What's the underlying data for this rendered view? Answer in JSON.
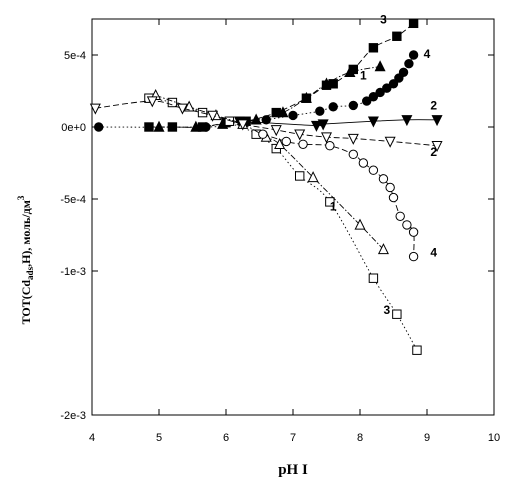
{
  "chart_data": {
    "type": "scatter",
    "xlabel": "pH I",
    "ylabel": "TOT(Cd_ads,H), моль/дм^3",
    "ylabel_parts": {
      "main": "TOT(Cd",
      "sub": "ads",
      "mid": ",H), моль/дм",
      "sup": "3"
    },
    "xlim": [
      4,
      10
    ],
    "ylim": [
      -0.002,
      0.00075
    ],
    "x_ticks": [
      4,
      5,
      6,
      7,
      8,
      9,
      10
    ],
    "x_tick_labels": [
      "4",
      "5",
      "6",
      "7",
      "8",
      "9",
      "10"
    ],
    "y_ticks": [
      0.0005,
      0,
      -0.0005,
      -0.001,
      -0.002
    ],
    "y_tick_labels": [
      "5e-4",
      "0e+0",
      "-5e-4",
      "-1e-3",
      "-2e-3"
    ],
    "grid": false,
    "series": [
      {
        "marker": "square-filled",
        "line": "dashed",
        "label_text": "3",
        "points": [
          [
            4.85,
            0
          ],
          [
            5.2,
            0
          ],
          [
            5.65,
            0
          ],
          [
            6.0,
            3e-05
          ],
          [
            6.3,
            4e-05
          ],
          [
            6.75,
            0.0001
          ],
          [
            7.2,
            0.0002
          ],
          [
            7.5,
            0.00029
          ],
          [
            7.6,
            0.0003
          ],
          [
            7.9,
            0.0004
          ],
          [
            8.2,
            0.00055
          ],
          [
            8.55,
            0.00063
          ],
          [
            8.8,
            0.00072
          ]
        ],
        "label_at": [
          8.3,
          0.00072
        ]
      },
      {
        "marker": "triangle-up-filled",
        "line": "dash-dot",
        "label_text": "1",
        "points": [
          [
            5.0,
            0
          ],
          [
            5.55,
            0
          ],
          [
            5.95,
            2e-05
          ],
          [
            6.45,
            5e-05
          ],
          [
            6.85,
            0.0001
          ],
          [
            7.2,
            0.0002
          ],
          [
            7.5,
            0.0003
          ],
          [
            7.85,
            0.00038
          ],
          [
            8.3,
            0.00042
          ]
        ],
        "label_at": [
          8.0,
          0.00033
        ]
      },
      {
        "marker": "circle-filled",
        "line": "dotted",
        "label_text": "4",
        "points": [
          [
            4.1,
            0
          ],
          [
            5.7,
            0
          ],
          [
            6.25,
            2e-05
          ],
          [
            6.6,
            5e-05
          ],
          [
            7.0,
            8e-05
          ],
          [
            7.4,
            0.00011
          ],
          [
            7.6,
            0.00014
          ],
          [
            7.9,
            0.00015
          ],
          [
            8.1,
            0.00018
          ],
          [
            8.2,
            0.00021
          ],
          [
            8.3,
            0.00024
          ],
          [
            8.4,
            0.00027
          ],
          [
            8.5,
            0.0003
          ],
          [
            8.58,
            0.00034
          ],
          [
            8.65,
            0.00038
          ],
          [
            8.73,
            0.00044
          ],
          [
            8.8,
            0.0005
          ]
        ],
        "label_at": [
          8.95,
          0.00048
        ]
      },
      {
        "marker": "triangle-down-filled",
        "line": "solid",
        "label_text": "2",
        "points": [
          [
            6.2,
            4e-05
          ],
          [
            7.35,
            1e-05
          ],
          [
            7.45,
            2e-05
          ],
          [
            8.2,
            4e-05
          ],
          [
            8.7,
            5e-05
          ],
          [
            9.15,
            5e-05
          ]
        ],
        "label_at": [
          9.05,
          0.00012
        ]
      },
      {
        "marker": "square-open",
        "line": "dotted",
        "label_text": "3",
        "points": [
          [
            4.85,
            0.0002
          ],
          [
            5.2,
            0.00017
          ],
          [
            5.65,
            0.0001
          ],
          [
            6.05,
            4e-05
          ],
          [
            6.45,
            -5e-05
          ],
          [
            6.75,
            -0.00015
          ],
          [
            7.1,
            -0.00034
          ],
          [
            7.55,
            -0.00052
          ],
          [
            8.2,
            -0.00105
          ],
          [
            8.55,
            -0.0013
          ],
          [
            8.85,
            -0.00155
          ]
        ],
        "label_at": [
          8.35,
          -0.0013
        ]
      },
      {
        "marker": "triangle-up-open",
        "line": "dash-dot",
        "label_text": "1",
        "points": [
          [
            4.95,
            0.00022
          ],
          [
            5.45,
            0.00014
          ],
          [
            5.85,
            8e-05
          ],
          [
            6.25,
            2e-05
          ],
          [
            6.6,
            -7e-05
          ],
          [
            6.8,
            -0.00012
          ],
          [
            7.3,
            -0.00035
          ],
          [
            8.0,
            -0.00068
          ],
          [
            8.35,
            -0.00085
          ]
        ],
        "label_at": [
          7.55,
          -0.00058
        ]
      },
      {
        "marker": "circle-open",
        "line": "dashed",
        "label_text": "4",
        "points": [
          [
            6.55,
            -5e-05
          ],
          [
            6.9,
            -0.0001
          ],
          [
            7.15,
            -0.00012
          ],
          [
            7.55,
            -0.00013
          ],
          [
            7.9,
            -0.00019
          ],
          [
            8.05,
            -0.00025
          ],
          [
            8.2,
            -0.0003
          ],
          [
            8.35,
            -0.00036
          ],
          [
            8.45,
            -0.00042
          ],
          [
            8.5,
            -0.00049
          ],
          [
            8.6,
            -0.00062
          ],
          [
            8.7,
            -0.00068
          ],
          [
            8.8,
            -0.00073
          ],
          [
            8.8,
            -0.0009
          ]
        ],
        "label_at": [
          9.05,
          -0.0009
        ]
      },
      {
        "marker": "triangle-down-open",
        "line": "dashed",
        "label_text": "2",
        "points": [
          [
            4.05,
            0.00013
          ],
          [
            4.9,
            0.00018
          ],
          [
            5.35,
            0.00013
          ],
          [
            5.8,
            8e-05
          ],
          [
            6.25,
            2e-05
          ],
          [
            6.75,
            -2e-05
          ],
          [
            7.1,
            -5e-05
          ],
          [
            7.5,
            -7e-05
          ],
          [
            7.9,
            -8e-05
          ],
          [
            8.45,
            -0.0001
          ],
          [
            9.15,
            -0.00013
          ]
        ],
        "label_at": [
          9.05,
          -0.0002
        ]
      }
    ]
  }
}
